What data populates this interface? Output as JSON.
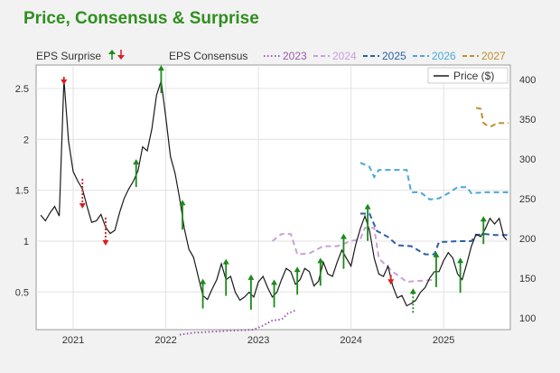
{
  "title": "Price, Consensus & Surprise",
  "legend": {
    "surprise_label": "EPS Surprise",
    "consensus_label": "EPS Consensus",
    "price_label": "Price ($)"
  },
  "chart_data": {
    "type": "line",
    "title": "Price, Consensus & Surprise",
    "x_tick_labels": [
      "2021",
      "2022",
      "2023",
      "2024",
      "2025"
    ],
    "y_left": {
      "ticks": [
        0.5,
        1,
        1.5,
        2,
        2.5
      ],
      "range": [
        0.13,
        2.73
      ]
    },
    "y_right": {
      "ticks": [
        100,
        150,
        200,
        250,
        300,
        350,
        400
      ],
      "range": [
        85,
        418
      ]
    },
    "x_range": [
      2020.6,
      2025.72
    ],
    "grid": true,
    "legend_position": "top",
    "price_series": {
      "name": "Price ($)",
      "color": "#1a1a1a",
      "points": [
        [
          2020.65,
          229
        ],
        [
          2020.7,
          222
        ],
        [
          2020.75,
          232
        ],
        [
          2020.8,
          240
        ],
        [
          2020.85,
          228
        ],
        [
          2020.9,
          400
        ],
        [
          2020.95,
          322
        ],
        [
          2021.0,
          284
        ],
        [
          2021.05,
          272
        ],
        [
          2021.1,
          262
        ],
        [
          2021.15,
          240
        ],
        [
          2021.2,
          220
        ],
        [
          2021.25,
          222
        ],
        [
          2021.3,
          230
        ],
        [
          2021.35,
          214
        ],
        [
          2021.4,
          206
        ],
        [
          2021.45,
          210
        ],
        [
          2021.5,
          232
        ],
        [
          2021.55,
          250
        ],
        [
          2021.6,
          262
        ],
        [
          2021.65,
          272
        ],
        [
          2021.7,
          285
        ],
        [
          2021.75,
          315
        ],
        [
          2021.8,
          310
        ],
        [
          2021.85,
          338
        ],
        [
          2021.9,
          380
        ],
        [
          2021.95,
          398
        ],
        [
          2022.0,
          352
        ],
        [
          2022.05,
          303
        ],
        [
          2022.1,
          282
        ],
        [
          2022.15,
          250
        ],
        [
          2022.2,
          212
        ],
        [
          2022.25,
          186
        ],
        [
          2022.3,
          176
        ],
        [
          2022.35,
          152
        ],
        [
          2022.4,
          128
        ],
        [
          2022.45,
          123
        ],
        [
          2022.5,
          136
        ],
        [
          2022.55,
          148
        ],
        [
          2022.6,
          168
        ],
        [
          2022.65,
          148
        ],
        [
          2022.7,
          152
        ],
        [
          2022.75,
          132
        ],
        [
          2022.8,
          122
        ],
        [
          2022.85,
          126
        ],
        [
          2022.9,
          132
        ],
        [
          2022.95,
          126
        ],
        [
          2023.0,
          145
        ],
        [
          2023.05,
          152
        ],
        [
          2023.1,
          138
        ],
        [
          2023.15,
          126
        ],
        [
          2023.2,
          132
        ],
        [
          2023.25,
          148
        ],
        [
          2023.3,
          162
        ],
        [
          2023.35,
          158
        ],
        [
          2023.4,
          142
        ],
        [
          2023.45,
          148
        ],
        [
          2023.5,
          162
        ],
        [
          2023.55,
          158
        ],
        [
          2023.6,
          140
        ],
        [
          2023.65,
          146
        ],
        [
          2023.7,
          170
        ],
        [
          2023.75,
          155
        ],
        [
          2023.8,
          152
        ],
        [
          2023.85,
          170
        ],
        [
          2023.9,
          185
        ],
        [
          2023.95,
          175
        ],
        [
          2024.0,
          165
        ],
        [
          2024.05,
          192
        ],
        [
          2024.1,
          212
        ],
        [
          2024.15,
          228
        ],
        [
          2024.2,
          210
        ],
        [
          2024.25,
          175
        ],
        [
          2024.3,
          155
        ],
        [
          2024.35,
          152
        ],
        [
          2024.4,
          165
        ],
        [
          2024.45,
          140
        ],
        [
          2024.5,
          125
        ],
        [
          2024.55,
          128
        ],
        [
          2024.6,
          115
        ],
        [
          2024.65,
          118
        ],
        [
          2024.7,
          122
        ],
        [
          2024.75,
          132
        ],
        [
          2024.8,
          138
        ],
        [
          2024.85,
          150
        ],
        [
          2024.9,
          158
        ],
        [
          2024.95,
          158
        ],
        [
          2025.0,
          172
        ],
        [
          2025.05,
          182
        ],
        [
          2025.1,
          175
        ],
        [
          2025.15,
          155
        ],
        [
          2025.2,
          148
        ],
        [
          2025.25,
          168
        ],
        [
          2025.3,
          190
        ],
        [
          2025.35,
          205
        ],
        [
          2025.4,
          202
        ],
        [
          2025.45,
          212
        ],
        [
          2025.5,
          225
        ],
        [
          2025.55,
          218
        ],
        [
          2025.6,
          225
        ],
        [
          2025.65,
          202
        ],
        [
          2025.68,
          198
        ]
      ]
    },
    "consensus_series": [
      {
        "name": "2023",
        "color": "#9c5ab0",
        "style": "dotted",
        "points": [
          [
            2022.15,
            0.08
          ],
          [
            2022.3,
            0.1
          ],
          [
            2022.5,
            0.11
          ],
          [
            2022.7,
            0.12
          ],
          [
            2022.95,
            0.13
          ],
          [
            2023.05,
            0.17
          ],
          [
            2023.15,
            0.22
          ],
          [
            2023.25,
            0.23
          ],
          [
            2023.32,
            0.29
          ],
          [
            2023.4,
            0.32
          ]
        ]
      },
      {
        "name": "2024",
        "color": "#c9a0dc",
        "style": "dashed",
        "points": [
          [
            2023.15,
            1.0
          ],
          [
            2023.25,
            1.07
          ],
          [
            2023.35,
            1.07
          ],
          [
            2023.42,
            0.87
          ],
          [
            2023.55,
            0.88
          ],
          [
            2023.7,
            0.95
          ],
          [
            2023.85,
            0.95
          ],
          [
            2024.0,
            1.0
          ],
          [
            2024.1,
            1.02
          ],
          [
            2024.15,
            1.13
          ],
          [
            2024.25,
            1.13
          ],
          [
            2024.3,
            0.83
          ],
          [
            2024.45,
            0.7
          ],
          [
            2024.6,
            0.6
          ],
          [
            2024.75,
            0.61
          ],
          [
            2024.9,
            0.62
          ]
        ]
      },
      {
        "name": "2025",
        "color": "#2b5fa6",
        "style": "dashed",
        "points": [
          [
            2024.1,
            1.27
          ],
          [
            2024.2,
            1.27
          ],
          [
            2024.28,
            1.1
          ],
          [
            2024.4,
            1.04
          ],
          [
            2024.5,
            0.96
          ],
          [
            2024.65,
            0.95
          ],
          [
            2024.8,
            0.87
          ],
          [
            2024.9,
            0.87
          ],
          [
            2024.95,
            0.99
          ],
          [
            2025.15,
            1.0
          ],
          [
            2025.3,
            1.0
          ],
          [
            2025.35,
            1.06
          ],
          [
            2025.45,
            1.07
          ],
          [
            2025.55,
            1.06
          ],
          [
            2025.7,
            1.06
          ]
        ]
      },
      {
        "name": "2026",
        "color": "#4aa8d8",
        "style": "dashed",
        "points": [
          [
            2024.1,
            1.77
          ],
          [
            2024.2,
            1.73
          ],
          [
            2024.25,
            1.63
          ],
          [
            2024.3,
            1.7
          ],
          [
            2024.6,
            1.7
          ],
          [
            2024.65,
            1.48
          ],
          [
            2024.75,
            1.48
          ],
          [
            2024.85,
            1.41
          ],
          [
            2024.95,
            1.42
          ],
          [
            2025.05,
            1.47
          ],
          [
            2025.15,
            1.53
          ],
          [
            2025.25,
            1.53
          ],
          [
            2025.3,
            1.47
          ],
          [
            2025.45,
            1.48
          ],
          [
            2025.7,
            1.48
          ]
        ]
      },
      {
        "name": "2027",
        "color": "#c09030",
        "style": "dashed",
        "points": [
          [
            2025.35,
            2.31
          ],
          [
            2025.4,
            2.3
          ],
          [
            2025.43,
            2.16
          ],
          [
            2025.48,
            2.13
          ],
          [
            2025.52,
            2.13
          ],
          [
            2025.58,
            2.16
          ],
          [
            2025.7,
            2.16
          ]
        ]
      }
    ],
    "surprise_arrows": [
      {
        "x": 2020.9,
        "dir": "down",
        "color": "#d62020",
        "dotted": false,
        "len": 8
      },
      {
        "x": 2021.1,
        "dir": "down",
        "color": "#d62020",
        "dotted": true,
        "len": 32
      },
      {
        "x": 2021.35,
        "dir": "down",
        "color": "#d62020",
        "dotted": true,
        "len": 30
      },
      {
        "x": 2021.68,
        "dir": "up",
        "color": "#1a8a1a",
        "dotted": false,
        "len": 30
      },
      {
        "x": 2021.95,
        "dir": "up",
        "color": "#1a8a1a",
        "dotted": false,
        "len": 30
      },
      {
        "x": 2022.18,
        "dir": "up",
        "color": "#1a8a1a",
        "dotted": false,
        "len": 32
      },
      {
        "x": 2022.4,
        "dir": "up",
        "color": "#1a8a1a",
        "dotted": false,
        "len": 32
      },
      {
        "x": 2022.65,
        "dir": "up",
        "color": "#1a8a1a",
        "dotted": false,
        "len": 40
      },
      {
        "x": 2022.92,
        "dir": "up",
        "color": "#1a8a1a",
        "dotted": false,
        "len": 38
      },
      {
        "x": 2023.17,
        "dir": "up",
        "color": "#1a8a1a",
        "dotted": false,
        "len": 30
      },
      {
        "x": 2023.42,
        "dir": "up",
        "color": "#1a8a1a",
        "dotted": false,
        "len": 30
      },
      {
        "x": 2023.67,
        "dir": "up",
        "color": "#1a8a1a",
        "dotted": false,
        "len": 30
      },
      {
        "x": 2023.92,
        "dir": "up",
        "color": "#1a8a1a",
        "dotted": false,
        "len": 38
      },
      {
        "x": 2024.18,
        "dir": "up",
        "color": "#1a8a1a",
        "dotted": false,
        "len": 40
      },
      {
        "x": 2024.43,
        "dir": "down",
        "color": "#d62020",
        "dotted": false,
        "len": 10
      },
      {
        "x": 2024.67,
        "dir": "up",
        "color": "#1a8a1a",
        "dotted": true,
        "len": 26
      },
      {
        "x": 2024.92,
        "dir": "up",
        "color": "#1a8a1a",
        "dotted": false,
        "len": 38
      },
      {
        "x": 2025.18,
        "dir": "up",
        "color": "#1a8a1a",
        "dotted": false,
        "len": 38
      },
      {
        "x": 2025.43,
        "dir": "up",
        "color": "#1a8a1a",
        "dotted": false,
        "len": 30
      }
    ]
  }
}
